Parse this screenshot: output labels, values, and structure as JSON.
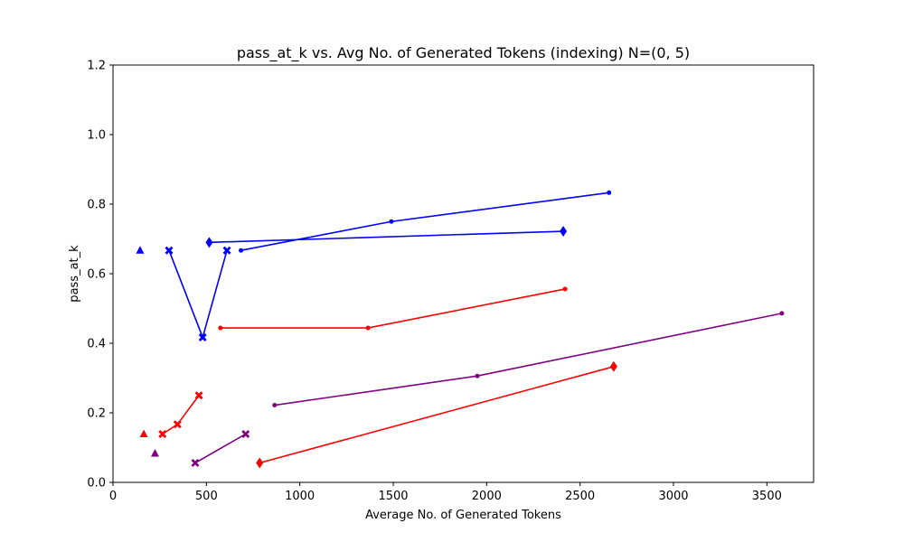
{
  "chart_data": {
    "type": "line",
    "title": "pass_at_k vs. Avg No. of Generated Tokens (indexing) N=(0, 5)",
    "xlabel": "Average No. of Generated Tokens",
    "ylabel": "pass_at_k",
    "xlim": [
      0,
      3750
    ],
    "ylim": [
      0,
      1.2
    ],
    "xticks": [
      0,
      500,
      1000,
      1500,
      2000,
      2500,
      3000,
      3500
    ],
    "yticks": [
      0.0,
      0.2,
      0.4,
      0.6,
      0.8,
      1.0,
      1.2
    ],
    "grid": false,
    "series": [
      {
        "color": "#0000ff",
        "marker": "triangle",
        "x": [
          145
        ],
        "y": [
          0.667
        ]
      },
      {
        "color": "#0000ff",
        "marker": "x",
        "x": [
          300,
          480,
          610
        ],
        "y": [
          0.667,
          0.417,
          0.667
        ]
      },
      {
        "color": "#0000ff",
        "marker": "dot",
        "x": [
          685,
          1490,
          2655
        ],
        "y": [
          0.667,
          0.75,
          0.833
        ]
      },
      {
        "color": "#0000ff",
        "marker": "diamond",
        "x": [
          515,
          2410
        ],
        "y": [
          0.69,
          0.722
        ]
      },
      {
        "color": "#ff0000",
        "marker": "triangle",
        "x": [
          165
        ],
        "y": [
          0.139
        ]
      },
      {
        "color": "#ff0000",
        "marker": "x",
        "x": [
          265,
          345,
          460
        ],
        "y": [
          0.139,
          0.167,
          0.25
        ]
      },
      {
        "color": "#ff0000",
        "marker": "dot",
        "x": [
          575,
          1365,
          2420
        ],
        "y": [
          0.444,
          0.444,
          0.556
        ]
      },
      {
        "color": "#ff0000",
        "marker": "diamond",
        "x": [
          785,
          2680
        ],
        "y": [
          0.056,
          0.333
        ]
      },
      {
        "color": "#800080",
        "marker": "triangle",
        "x": [
          225
        ],
        "y": [
          0.083
        ]
      },
      {
        "color": "#800080",
        "marker": "x",
        "x": [
          440,
          710
        ],
        "y": [
          0.056,
          0.139
        ]
      },
      {
        "color": "#800080",
        "marker": "dot",
        "x": [
          865,
          1950,
          3580
        ],
        "y": [
          0.222,
          0.306,
          0.486
        ]
      }
    ]
  }
}
